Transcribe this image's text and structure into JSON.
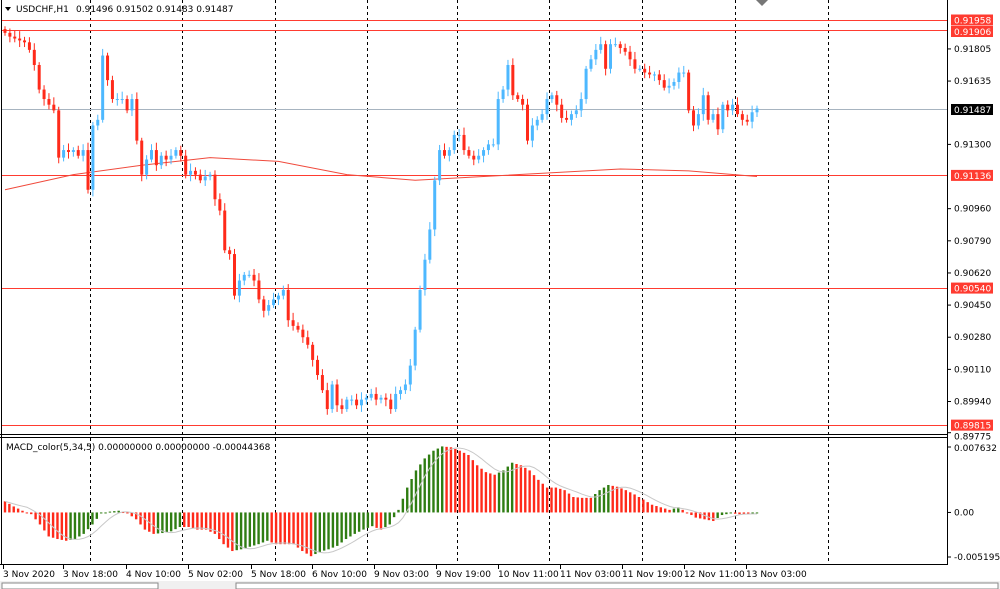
{
  "header": {
    "symbol": "USDCHF,H1",
    "ohlc": "0.91496 0.91502 0.91483 0.91487"
  },
  "indicator": {
    "label": "MACD_color(5,34,5) 0.00000000 0.00000000 -0.00044368",
    "axis_labels": [
      "0.007632",
      "0.00",
      "-0.005195"
    ]
  },
  "colors": {
    "bull": "#4db8ff",
    "bear": "#ff2a1a",
    "level_line": "#ff3b30",
    "ma_line": "#f04a3c",
    "current_price": "#a7b4c0",
    "macd_up": "#2f7d12",
    "macd_down": "#ff2a1a",
    "signal": "#c8c8c8"
  },
  "chart_data": {
    "type": "candlestick",
    "title": "USDCHF,H1",
    "ylim": [
      0.89775,
      0.91958
    ],
    "y_ticks": [
      "0.91805",
      "0.91635",
      "0.91300",
      "0.90960",
      "0.90790",
      "0.90620",
      "0.90450",
      "0.90280",
      "0.90110",
      "0.89940",
      "0.89775"
    ],
    "x_ticks": [
      "3 Nov 2020",
      "3 Nov 18:00",
      "4 Nov 10:00",
      "5 Nov 02:00",
      "5 Nov 18:00",
      "6 Nov 10:00",
      "9 Nov 03:00",
      "9 Nov 19:00",
      "10 Nov 11:00",
      "11 Nov 03:00",
      "11 Nov 19:00",
      "12 Nov 11:00",
      "13 Nov 03:00"
    ],
    "grid": "vertical dashed",
    "current_price": "0.91487",
    "levels": [
      "0.91958",
      "0.91906",
      "0.91136",
      "0.90540",
      "0.89815"
    ],
    "closes": [
      0.9189,
      0.9187,
      0.9186,
      0.9185,
      0.9184,
      0.918,
      0.9172,
      0.9159,
      0.9154,
      0.9151,
      0.9148,
      0.9123,
      0.9127,
      0.9126,
      0.9127,
      0.9124,
      0.9127,
      0.9106,
      0.914,
      0.9143,
      0.9177,
      0.9164,
      0.9154,
      0.9154,
      0.9154,
      0.9148,
      0.9154,
      0.9132,
      0.9114,
      0.9122,
      0.9127,
      0.9119,
      0.9124,
      0.9122,
      0.9124,
      0.9127,
      0.9124,
      0.9114,
      0.9116,
      0.9114,
      0.9111,
      0.9113,
      0.9114,
      0.9101,
      0.9095,
      0.9074,
      0.9072,
      0.905,
      0.9058,
      0.9061,
      0.9061,
      0.9058,
      0.9048,
      0.9042,
      0.9045,
      0.9048,
      0.905,
      0.9053,
      0.9037,
      0.9034,
      0.9032,
      0.9028,
      0.9024,
      0.9016,
      0.9008,
      0.9,
      0.899,
      0.9003,
      0.8992,
      0.899,
      0.8995,
      0.8995,
      0.8992,
      0.8995,
      0.8996,
      0.8998,
      0.8995,
      0.8996,
      0.8995,
      0.899,
      0.8998,
      0.9,
      0.9003,
      0.9013,
      0.9032,
      0.9053,
      0.9069,
      0.9085,
      0.9111,
      0.9127,
      0.9124,
      0.9127,
      0.9135,
      0.9135,
      0.9127,
      0.9124,
      0.9122,
      0.9124,
      0.9127,
      0.913,
      0.913,
      0.9154,
      0.9159,
      0.9172,
      0.9156,
      0.9154,
      0.9151,
      0.9132,
      0.914,
      0.9143,
      0.9146,
      0.9154,
      0.9156,
      0.9151,
      0.9144,
      0.9143,
      0.9146,
      0.9148,
      0.9154,
      0.917,
      0.9175,
      0.918,
      0.9183,
      0.917,
      0.9183,
      0.9183,
      0.9181,
      0.9179,
      0.9175,
      0.917,
      0.917,
      0.9168,
      0.9167,
      0.9167,
      0.9164,
      0.916,
      0.9161,
      0.9163,
      0.9168,
      0.9168,
      0.9148,
      0.914,
      0.9146,
      0.9156,
      0.9143,
      0.9146,
      0.9138,
      0.9151,
      0.9148,
      0.9151,
      0.9146,
      0.9143,
      0.9142,
      0.9147,
      0.9149
    ],
    "moving_average": [
      0.9106,
      0.9114,
      0.9119,
      0.9123,
      0.9121,
      0.9114,
      0.9111,
      0.9113,
      0.9115,
      0.9117,
      0.9116,
      0.9113
    ],
    "macd": {
      "ylim": [
        -0.005195,
        0.007632
      ],
      "histogram": [
        0.0013,
        0.0007,
        0.0002,
        -0.0002,
        -0.0014,
        -0.0028,
        -0.0031,
        -0.0033,
        -0.0031,
        -0.0025,
        -0.0014,
        -0.0001,
        0.0001,
        0.0002,
        -0.0001,
        -0.0008,
        -0.002,
        -0.0025,
        -0.0024,
        -0.0022,
        -0.0017,
        -0.0017,
        -0.002,
        -0.002,
        -0.0025,
        -0.0037,
        -0.0045,
        -0.0043,
        -0.004,
        -0.0037,
        -0.0033,
        -0.0037,
        -0.0037,
        -0.0037,
        -0.0045,
        -0.0051,
        -0.0046,
        -0.0043,
        -0.0039,
        -0.0031,
        -0.0025,
        -0.002,
        -0.0016,
        -0.002,
        -0.0014,
        0.0003,
        0.0029,
        0.0049,
        0.0063,
        0.0072,
        0.0077,
        0.0076,
        0.0072,
        0.0067,
        0.0055,
        0.0047,
        0.0044,
        0.0049,
        0.0058,
        0.0055,
        0.0049,
        0.0038,
        0.0029,
        0.0029,
        0.0026,
        0.0018,
        0.0017,
        0.0017,
        0.0026,
        0.0032,
        0.003,
        0.0026,
        0.0021,
        0.0015,
        0.0009,
        0.0006,
        0.0003,
        0.0006,
        0.0,
        -0.0006,
        -0.0008,
        -0.001,
        -0.0003,
        -0.0001,
        -0.0002,
        -0.0002,
        -0.0001
      ]
    }
  }
}
